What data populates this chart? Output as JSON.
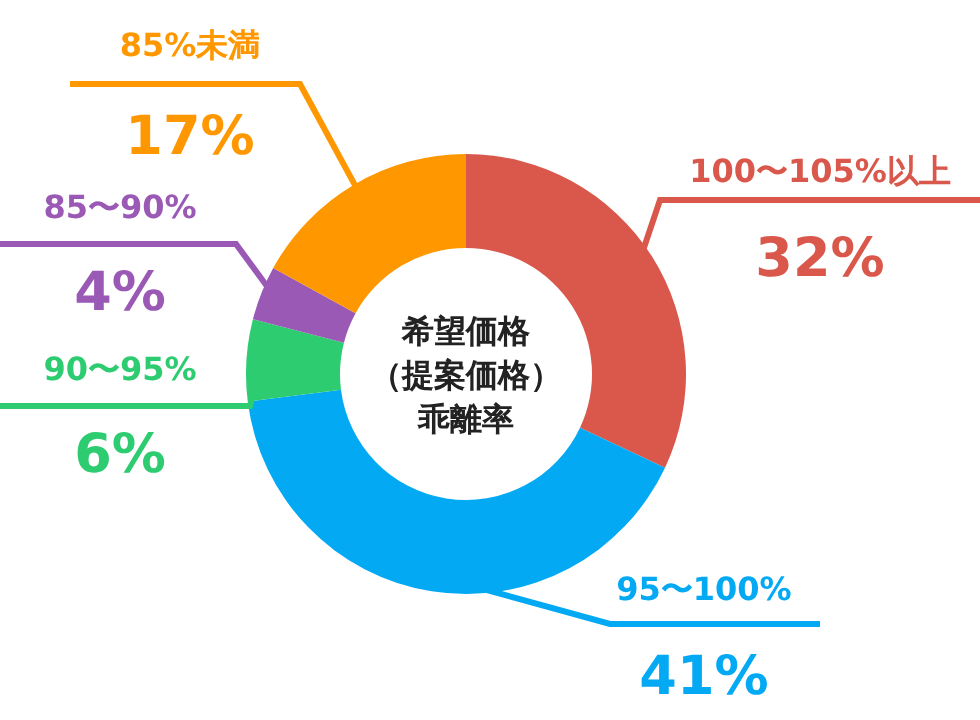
{
  "chart_data": {
    "type": "donut",
    "title": "希望価格（提案価格）乖離率",
    "categories": [
      "100〜105%以上",
      "95〜100%",
      "90〜95%",
      "85〜90%",
      "85%未満"
    ],
    "values": [
      32,
      41,
      6,
      4,
      17
    ],
    "colors": [
      "#d9584b",
      "#04a9f4",
      "#2ecc71",
      "#9b59b6",
      "#ff9800"
    ],
    "value_labels": [
      "32%",
      "41%",
      "6%",
      "4%",
      "17%"
    ]
  }
}
